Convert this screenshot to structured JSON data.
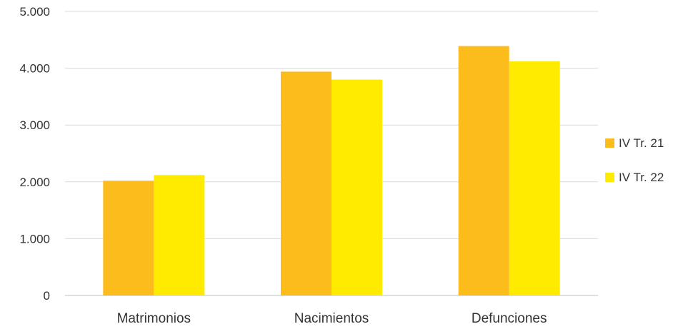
{
  "chart_data": {
    "type": "bar",
    "categories": [
      "Matrimonios",
      "Nacimientos",
      "Defunciones"
    ],
    "series": [
      {
        "name": "IV Tr. 21",
        "color": "#FBBC1C",
        "values": [
          2020,
          3940,
          4390
        ]
      },
      {
        "name": "IV Tr. 22",
        "color": "#FFEB00",
        "values": [
          2120,
          3800,
          4120
        ]
      }
    ],
    "ylim": [
      0,
      5000
    ],
    "yticks": [
      0,
      1000,
      2000,
      3000,
      4000,
      5000
    ],
    "ytick_labels": [
      "0",
      "1.000",
      "2.000",
      "3.000",
      "4.000",
      "5.000"
    ],
    "grid": true,
    "legend_position": "right",
    "title": "",
    "xlabel": "",
    "ylabel": ""
  }
}
